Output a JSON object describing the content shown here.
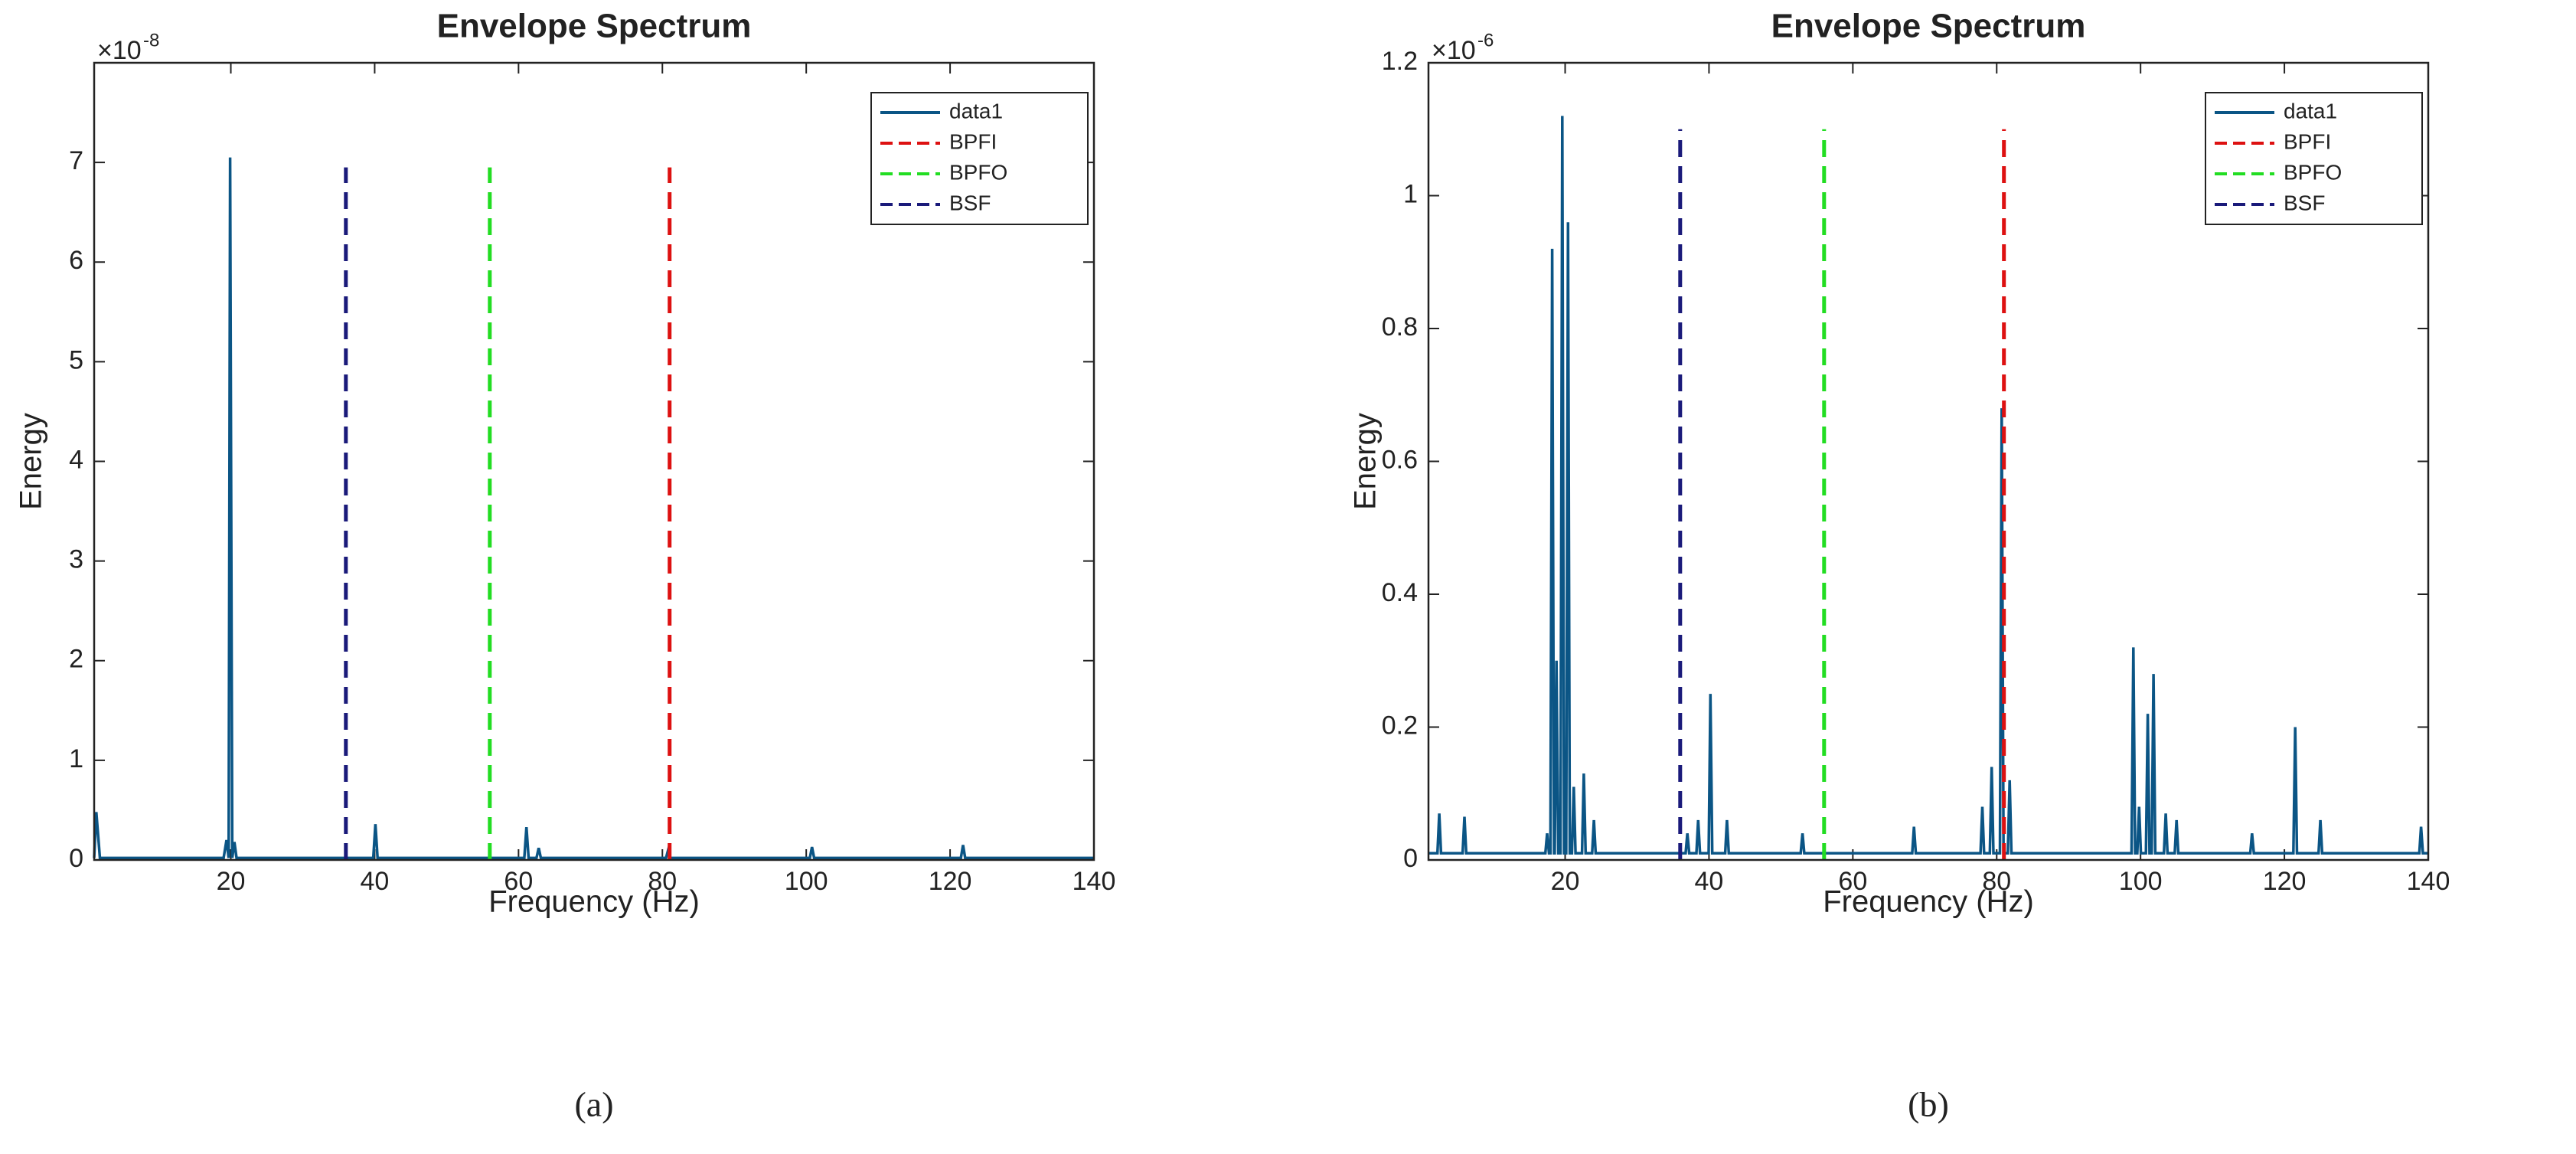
{
  "chart_data": [
    {
      "type": "line",
      "title": "Envelope Spectrum",
      "xlabel": "Frequency (Hz)",
      "ylabel": "Energy",
      "y_scale_base": "×10",
      "y_scale_exponent": "-8",
      "panel_label": "(a)",
      "xlim": [
        1,
        140
      ],
      "xticks": [
        20,
        40,
        60,
        80,
        100,
        120,
        140
      ],
      "ylim": [
        0,
        8
      ],
      "yticks": [
        0,
        1,
        2,
        3,
        4,
        5,
        6,
        7
      ],
      "legend": "upper right",
      "series": [
        {
          "name": "data1",
          "color": "#0b5585",
          "linestyle": "-",
          "x": [
            1,
            1.3,
            1.8,
            19,
            19.4,
            19.7,
            19.9,
            20.2,
            20.5,
            20.8,
            21,
            39.8,
            40.1,
            40.4,
            60.8,
            61.1,
            61.4,
            62.5,
            62.8,
            63.1,
            80.5,
            80.8,
            81.1,
            100.5,
            100.8,
            101.1,
            121.5,
            121.8,
            122.1,
            140
          ],
          "values": [
            0.02,
            0.48,
            0.02,
            0.02,
            0.2,
            0.02,
            7.05,
            0.02,
            0.18,
            0.02,
            0.02,
            0.02,
            0.36,
            0.02,
            0.02,
            0.33,
            0.02,
            0.02,
            0.12,
            0.02,
            0.02,
            0.1,
            0.02,
            0.02,
            0.13,
            0.02,
            0.02,
            0.15,
            0.02,
            0.02
          ]
        },
        {
          "name": "BPFI",
          "color": "#dd1111",
          "linestyle": "--",
          "x": [
            81,
            81
          ],
          "values": [
            0,
            6.95
          ]
        },
        {
          "name": "BPFO",
          "color": "#22dd22",
          "linestyle": "--",
          "x": [
            56,
            56
          ],
          "values": [
            0,
            6.95
          ]
        },
        {
          "name": "BSF",
          "color": "#1a1a7a",
          "linestyle": "--",
          "x": [
            36,
            36
          ],
          "values": [
            0,
            6.95
          ]
        }
      ]
    },
    {
      "type": "line",
      "title": "Envelope Spectrum",
      "xlabel": "Frequency (Hz)",
      "ylabel": "Energy",
      "y_scale_base": "×10",
      "y_scale_exponent": "-6",
      "panel_label": "(b)",
      "xlim": [
        1,
        140
      ],
      "xticks": [
        20,
        40,
        60,
        80,
        100,
        120,
        140
      ],
      "ylim": [
        0,
        1.2
      ],
      "yticks": [
        0,
        0.2,
        0.4,
        0.6,
        0.8,
        1,
        1.2
      ],
      "legend": "upper right",
      "series": [
        {
          "name": "data1",
          "color": "#0b5585",
          "linestyle": "-",
          "x": [
            1,
            2.25,
            2.5,
            2.75,
            5.75,
            6,
            6.25,
            17.25,
            17.5,
            17.75,
            17.95,
            18.2,
            18.45,
            18.55,
            18.8,
            19.05,
            19.35,
            19.6,
            19.85,
            20.15,
            20.4,
            20.65,
            20.95,
            21.2,
            21.45,
            22.35,
            22.6,
            22.85,
            23.75,
            24,
            24.25,
            36.75,
            37,
            37.25,
            38.25,
            38.5,
            38.75,
            39.95,
            40.2,
            40.45,
            42.25,
            42.5,
            42.75,
            52.75,
            53,
            53.25,
            68.25,
            68.5,
            68.75,
            77.75,
            78,
            78.25,
            79.05,
            79.3,
            79.55,
            80.45,
            80.7,
            80.95,
            81.55,
            81.8,
            82.05,
            98.75,
            99,
            99.25,
            99.55,
            99.8,
            100.05,
            100.75,
            101,
            101.25,
            101.55,
            101.8,
            102.05,
            103.25,
            103.5,
            103.75,
            104.75,
            105,
            105.25,
            115.25,
            115.5,
            115.75,
            121.25,
            121.5,
            121.75,
            124.75,
            125,
            125.25,
            138.75,
            139,
            139.25,
            140
          ],
          "values": [
            0.01,
            0.01,
            0.07,
            0.01,
            0.01,
            0.065,
            0.01,
            0.01,
            0.04,
            0.01,
            0.01,
            0.92,
            0.01,
            0.01,
            0.3,
            0.01,
            0.01,
            1.12,
            0.01,
            0.01,
            0.96,
            0.01,
            0.01,
            0.11,
            0.01,
            0.01,
            0.13,
            0.01,
            0.01,
            0.06,
            0.01,
            0.01,
            0.04,
            0.01,
            0.01,
            0.06,
            0.01,
            0.01,
            0.25,
            0.01,
            0.01,
            0.06,
            0.01,
            0.01,
            0.04,
            0.01,
            0.01,
            0.05,
            0.01,
            0.01,
            0.08,
            0.01,
            0.01,
            0.14,
            0.01,
            0.01,
            0.68,
            0.01,
            0.01,
            0.12,
            0.01,
            0.01,
            0.32,
            0.01,
            0.01,
            0.08,
            0.01,
            0.01,
            0.22,
            0.01,
            0.01,
            0.28,
            0.01,
            0.01,
            0.07,
            0.01,
            0.01,
            0.06,
            0.01,
            0.01,
            0.04,
            0.01,
            0.01,
            0.2,
            0.01,
            0.01,
            0.06,
            0.01,
            0.01,
            0.05,
            0.01,
            0.01
          ]
        },
        {
          "name": "BPFI",
          "color": "#dd1111",
          "linestyle": "--",
          "x": [
            81,
            81
          ],
          "values": [
            0,
            1.1
          ]
        },
        {
          "name": "BPFO",
          "color": "#22dd22",
          "linestyle": "--",
          "x": [
            56,
            56
          ],
          "values": [
            0,
            1.1
          ]
        },
        {
          "name": "BSF",
          "color": "#1a1a7a",
          "linestyle": "--",
          "x": [
            36,
            36
          ],
          "values": [
            0,
            1.1
          ]
        }
      ]
    }
  ]
}
